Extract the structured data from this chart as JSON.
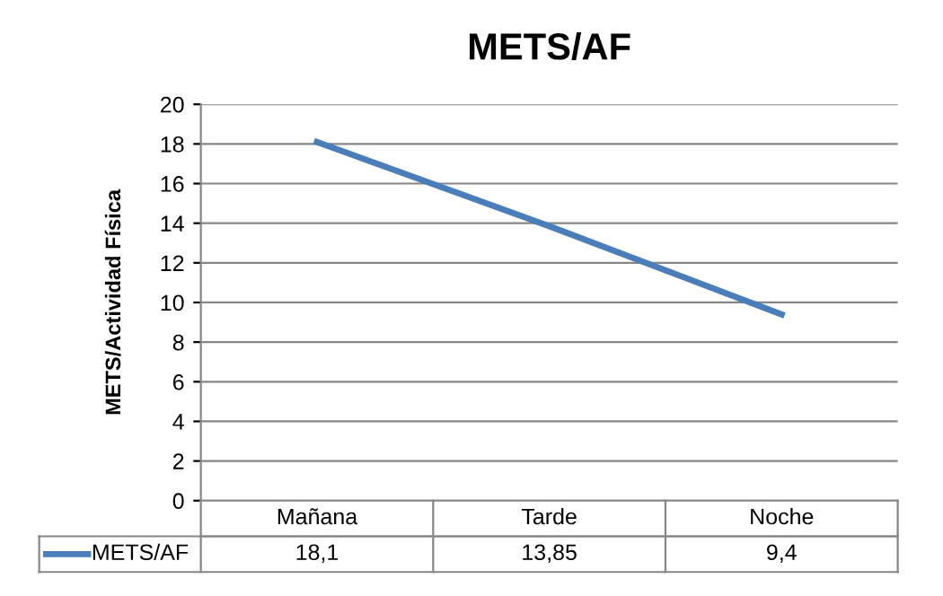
{
  "chart_data": {
    "type": "line",
    "title": "METS/AF",
    "ylabel": "METS/Actividad Física",
    "categories": [
      "Mañana",
      "Tarde",
      "Noche"
    ],
    "series": [
      {
        "name": "METS/AF",
        "color": "#4a7ebb",
        "values": [
          18.1,
          13.85,
          9.4
        ],
        "value_labels": [
          "18,1",
          "13,85",
          "9,4"
        ]
      }
    ],
    "ylim": [
      0,
      20
    ],
    "yticks": [
      0,
      2,
      4,
      6,
      8,
      10,
      12,
      14,
      16,
      18,
      20
    ],
    "grid": "y",
    "legend": "bottom",
    "marker": "none",
    "line_style": "solid"
  }
}
